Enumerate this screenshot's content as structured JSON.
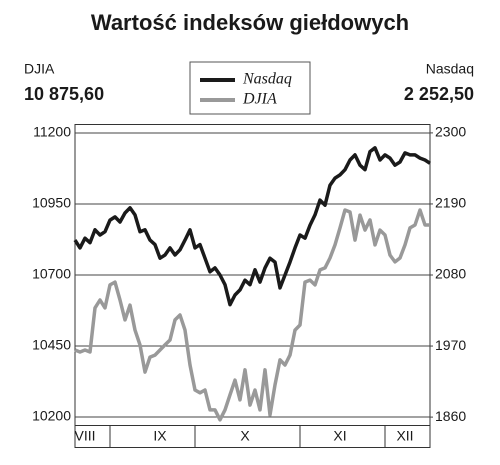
{
  "chart_data": {
    "type": "line",
    "title": "Wartość indeksów giełdowych",
    "left_name": "DJIA",
    "left_value": "10 875,60",
    "right_name": "Nasdaq",
    "right_value": "2 252,50",
    "categories": [
      null,
      null,
      "VIII",
      null,
      null,
      null,
      null,
      null,
      null,
      null,
      null,
      null,
      null,
      null,
      null,
      null,
      null,
      "IX",
      null,
      null,
      null,
      null,
      null,
      null,
      null,
      null,
      null,
      null,
      null,
      null,
      null,
      null,
      null,
      null,
      "X",
      null,
      null,
      null,
      null,
      null,
      null,
      null,
      null,
      null,
      null,
      null,
      null,
      null,
      null,
      null,
      null,
      null,
      null,
      "XI",
      null,
      null,
      null,
      null,
      null,
      null,
      null,
      null,
      null,
      null,
      null,
      null,
      "XII",
      null,
      null,
      null,
      null,
      null
    ],
    "series": [
      {
        "name": "Nasdaq",
        "color": "#1a1a1a",
        "axis": "y2",
        "values": [
          2134,
          2122,
          2137,
          2130,
          2150,
          2142,
          2147,
          2165,
          2170,
          2162,
          2176,
          2184,
          2173,
          2147,
          2150,
          2134,
          2127,
          2106,
          2111,
          2122,
          2111,
          2119,
          2134,
          2150,
          2122,
          2127,
          2106,
          2085,
          2091,
          2080,
          2065,
          2034,
          2049,
          2057,
          2072,
          2065,
          2088,
          2069,
          2091,
          2106,
          2100,
          2060,
          2080,
          2100,
          2122,
          2142,
          2137,
          2157,
          2173,
          2196,
          2188,
          2219,
          2230,
          2235,
          2243,
          2258,
          2266,
          2250,
          2243,
          2271,
          2277,
          2258,
          2266,
          2261,
          2250,
          2255,
          2269,
          2266,
          2266,
          2261,
          2258,
          2253
        ]
      },
      {
        "name": "DJIA",
        "color": "#999999",
        "values": [
          10436,
          10429,
          10436,
          10429,
          10584,
          10612,
          10584,
          10665,
          10675,
          10612,
          10542,
          10594,
          10506,
          10454,
          10358,
          10411,
          10418,
          10436,
          10454,
          10471,
          10542,
          10559,
          10506,
          10383,
          10295,
          10285,
          10295,
          10225,
          10225,
          10190,
          10225,
          10278,
          10330,
          10260,
          10366,
          10242,
          10295,
          10225,
          10366,
          10207,
          10313,
          10401,
          10383,
          10418,
          10506,
          10524,
          10675,
          10682,
          10665,
          10718,
          10725,
          10760,
          10806,
          10866,
          10929,
          10922,
          10823,
          10911,
          10858,
          10894,
          10806,
          10858,
          10841,
          10770,
          10746,
          10760,
          10806,
          10866,
          10876,
          10929,
          10876,
          10876
        ]
      }
    ],
    "ylim": [
      10170,
      11230
    ],
    "yticks": [
      10200,
      10450,
      10700,
      10950,
      11200
    ],
    "y2lim": [
      1847,
      2313
    ],
    "y2ticks": [
      1860,
      1970,
      2080,
      2190,
      2300
    ],
    "grid": true
  }
}
